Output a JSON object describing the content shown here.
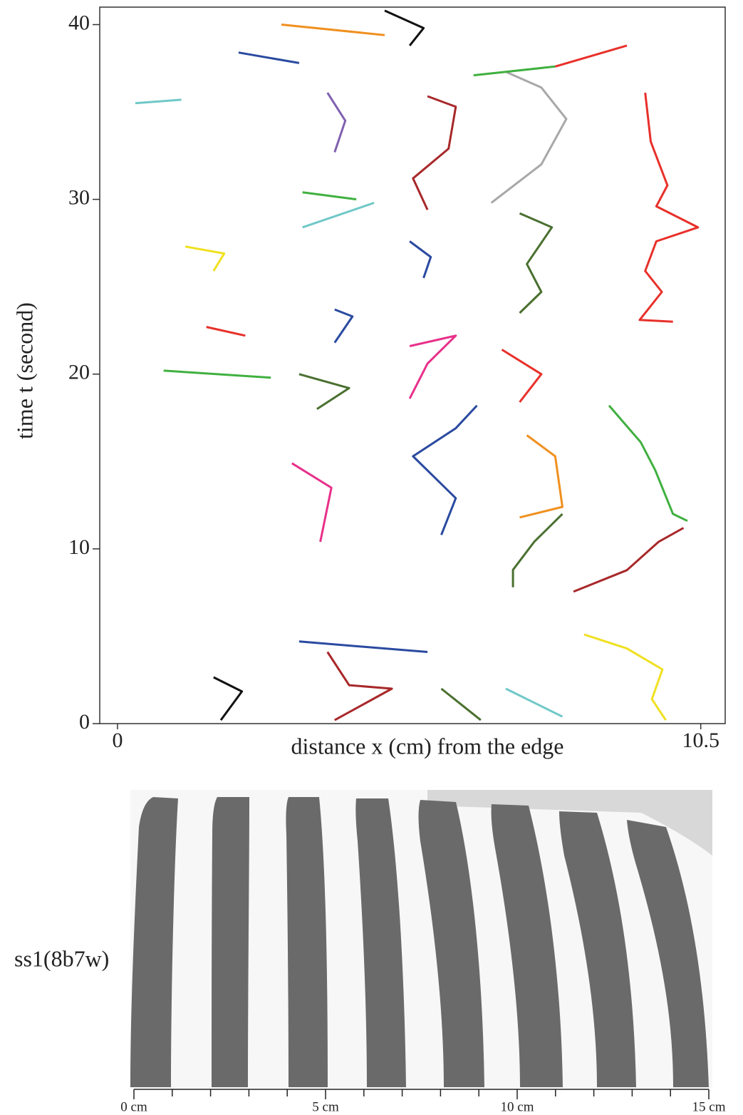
{
  "chart_data": [
    {
      "type": "line",
      "xlabel": "distance x (cm) from the edge",
      "ylabel": "time t (second)",
      "xlim": [
        -0.32,
        10.94
      ],
      "ylim": [
        0,
        41
      ],
      "xticks": [
        0,
        10.5
      ],
      "yticks": [
        0,
        10,
        20,
        30,
        40
      ],
      "series": [
        {
          "color": "#e8302a",
          "x": [
            9.5,
            9.6,
            9.9,
            9.7,
            10.45,
            9.7,
            9.5,
            9.8,
            9.4,
            10.0
          ],
          "values": [
            36.1,
            33.3,
            30.8,
            29.6,
            28.4,
            27.6,
            25.9,
            24.7,
            23.1,
            23.0
          ]
        },
        {
          "color": "#a8a8a8",
          "x": [
            6.99,
            7.63,
            8.08,
            7.63,
            6.73
          ],
          "values": [
            37.3,
            36.4,
            34.6,
            32.0,
            29.8
          ]
        },
        {
          "color": "#a8282a",
          "x": [
            5.58,
            6.09,
            5.96,
            5.32,
            5.58
          ],
          "values": [
            35.9,
            35.3,
            32.9,
            31.2,
            29.4
          ]
        },
        {
          "color": "#4a7030",
          "x": [
            7.24,
            7.82,
            7.37,
            7.63,
            7.24
          ],
          "values": [
            29.2,
            28.4,
            26.3,
            24.7,
            23.5
          ]
        },
        {
          "color": "#2a4aa0",
          "x": [
            5.26,
            5.64,
            5.51
          ],
          "values": [
            27.6,
            26.7,
            25.5
          ]
        },
        {
          "color": "#e8308a",
          "x": [
            5.26,
            6.09,
            5.58,
            5.26
          ],
          "values": [
            21.6,
            22.2,
            20.6,
            18.6
          ]
        },
        {
          "color": "#e8302a",
          "x": [
            6.92,
            7.63,
            7.24
          ],
          "values": [
            21.4,
            20.0,
            18.4
          ]
        },
        {
          "color": "#2a4aa0",
          "x": [
            6.47,
            6.09,
            5.32,
            6.09,
            5.83
          ],
          "values": [
            18.2,
            16.9,
            15.3,
            12.9,
            10.8
          ]
        },
        {
          "color": "#40b040",
          "x": [
            8.85,
            9.42,
            9.68,
            10.0,
            10.26
          ],
          "values": [
            18.2,
            16.1,
            14.5,
            12.0,
            11.6
          ]
        },
        {
          "color": "#a8282a",
          "x": [
            8.21,
            9.17,
            9.74,
            10.19
          ],
          "values": [
            7.55,
            8.78,
            10.4,
            11.2
          ]
        },
        {
          "color": "#f0e020",
          "x": [
            8.4,
            9.17,
            9.81,
            9.62,
            9.87
          ],
          "values": [
            5.1,
            4.3,
            3.1,
            1.4,
            0.2
          ]
        },
        {
          "color": "#f09020",
          "x": [
            7.37,
            7.88,
            8.01,
            7.24
          ],
          "values": [
            16.5,
            15.3,
            12.4,
            11.8
          ]
        },
        {
          "color": "#4a7030",
          "x": [
            8.01,
            7.5,
            7.12,
            7.12
          ],
          "values": [
            12.0,
            10.4,
            8.8,
            7.8
          ]
        },
        {
          "color": "#2a4aa0",
          "x": [
            3.27,
            5.58
          ],
          "values": [
            4.7,
            4.1
          ]
        },
        {
          "color": "#a8282a",
          "x": [
            3.78,
            4.17,
            4.94,
            3.91
          ],
          "values": [
            4.1,
            2.2,
            2.0,
            0.2
          ]
        },
        {
          "color": "#111111",
          "x": [
            1.73,
            2.24,
            1.86
          ],
          "values": [
            2.65,
            1.84,
            0.2
          ]
        },
        {
          "color": "#4a7030",
          "x": [
            5.83,
            6.54
          ],
          "values": [
            2.0,
            0.2
          ]
        },
        {
          "color": "#70c8c8",
          "x": [
            6.99,
            8.01
          ],
          "values": [
            2.0,
            0.4
          ]
        },
        {
          "color": "#e8308a",
          "x": [
            3.14,
            3.85,
            3.65
          ],
          "values": [
            14.9,
            13.5,
            10.4
          ]
        },
        {
          "color": "#40b040",
          "x": [
            0.83,
            2.76
          ],
          "values": [
            20.2,
            19.8
          ]
        },
        {
          "color": "#70c8c8",
          "x": [
            3.33,
            4.62
          ],
          "values": [
            28.4,
            29.8
          ]
        },
        {
          "color": "#40b040",
          "x": [
            3.33,
            4.3
          ],
          "values": [
            30.4,
            30.0
          ]
        },
        {
          "color": "#f09020",
          "x": [
            2.95,
            4.81
          ],
          "values": [
            40.0,
            39.4
          ]
        },
        {
          "color": "#2a4aa0",
          "x": [
            2.18,
            3.27
          ],
          "values": [
            38.4,
            37.8
          ]
        },
        {
          "color": "#8060b0",
          "x": [
            3.78,
            4.1,
            3.91
          ],
          "values": [
            36.1,
            34.5,
            32.7
          ]
        },
        {
          "color": "#111111",
          "x": [
            4.81,
            5.51,
            5.26
          ],
          "values": [
            40.8,
            39.8,
            38.8
          ]
        },
        {
          "color": "#70c8c8",
          "x": [
            0.32,
            1.15
          ],
          "values": [
            35.5,
            35.7
          ]
        },
        {
          "color": "#f0e020",
          "x": [
            1.22,
            1.92,
            1.73
          ],
          "values": [
            27.3,
            26.9,
            25.9
          ]
        },
        {
          "color": "#e8302a",
          "x": [
            1.6,
            2.3
          ],
          "values": [
            22.7,
            22.2
          ]
        },
        {
          "color": "#4a7030",
          "x": [
            3.27,
            4.17,
            3.59
          ],
          "values": [
            20.0,
            19.2,
            18.0
          ]
        },
        {
          "color": "#2a4aa0",
          "x": [
            3.91,
            4.23,
            3.91
          ],
          "values": [
            23.7,
            23.3,
            21.8
          ]
        },
        {
          "color": "#40b040",
          "x": [
            6.41,
            7.88
          ],
          "values": [
            37.1,
            37.6
          ]
        },
        {
          "color": "#e8302a",
          "x": [
            7.88,
            9.17
          ],
          "values": [
            37.6,
            38.8
          ]
        }
      ]
    },
    {
      "type": "image",
      "label": "ss1(8b7w)",
      "xlim": [
        0,
        15
      ],
      "xticks": [
        {
          "value": 0,
          "label": "0 cm"
        },
        {
          "value": 5,
          "label": "5 cm"
        },
        {
          "value": 10,
          "label": "10 cm"
        },
        {
          "value": 15,
          "label": "15 cm"
        }
      ],
      "minor_xticks": [
        1,
        2,
        3,
        4,
        6,
        7,
        8,
        9,
        11,
        12,
        13,
        14
      ]
    }
  ]
}
